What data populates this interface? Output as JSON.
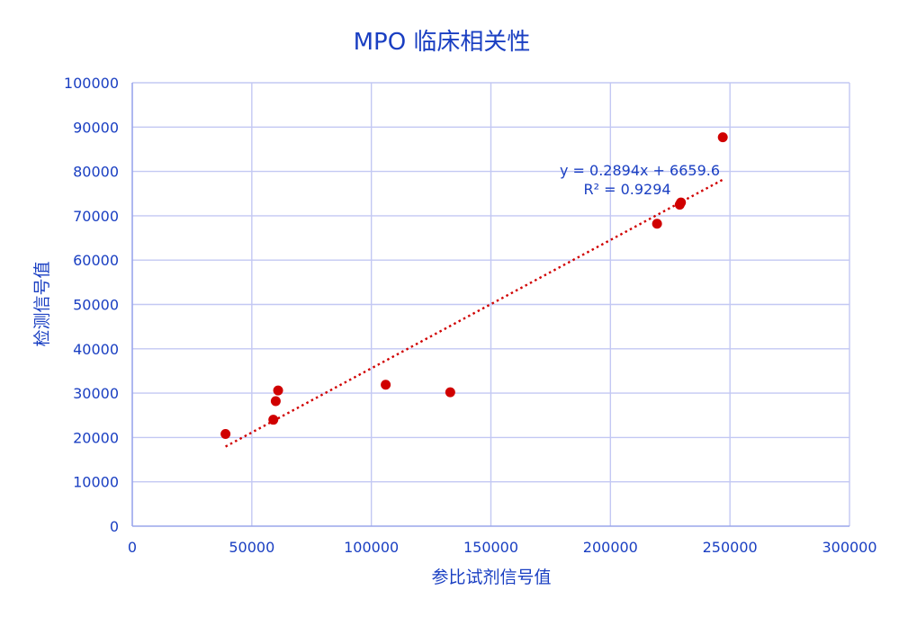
{
  "chart_data": {
    "type": "scatter",
    "title": "MPO 临床相关性",
    "xlabel": "参比试剂信号值",
    "ylabel": "检测信号值",
    "xlim": [
      0,
      300000
    ],
    "ylim": [
      0,
      100000
    ],
    "x_ticks": [
      0,
      50000,
      100000,
      150000,
      200000,
      250000,
      300000
    ],
    "y_ticks": [
      0,
      10000,
      20000,
      30000,
      40000,
      50000,
      60000,
      70000,
      80000,
      90000,
      100000
    ],
    "x_tick_labels": [
      "0",
      "50000",
      "100000",
      "150000",
      "200000",
      "250000",
      "300000"
    ],
    "y_tick_labels": [
      "0",
      "10000",
      "20000",
      "30000",
      "40000",
      "50000",
      "60000",
      "70000",
      "80000",
      "90000",
      "100000"
    ],
    "grid": true,
    "legend": "none",
    "series": [
      {
        "points": [
          {
            "x": 39000,
            "y": 20800
          },
          {
            "x": 59000,
            "y": 24000
          },
          {
            "x": 60000,
            "y": 28200
          },
          {
            "x": 61000,
            "y": 30600
          },
          {
            "x": 106000,
            "y": 31900
          },
          {
            "x": 133000,
            "y": 30200
          },
          {
            "x": 219500,
            "y": 68200
          },
          {
            "x": 229000,
            "y": 72500
          },
          {
            "x": 229500,
            "y": 73000
          },
          {
            "x": 247000,
            "y": 87700
          }
        ],
        "color": "#d00000"
      }
    ],
    "trendline": {
      "type": "linear",
      "slope": 0.2894,
      "intercept": 6659.6,
      "x_range": [
        39000,
        247000
      ],
      "equation": "y = 0.2894x + 6659.6",
      "r_squared": "R² = 0.9294",
      "color": "#d00000",
      "style": "dotted"
    },
    "colors": {
      "text": "#1a3fc2",
      "grid": "#c3c8f3",
      "axis": "#9aa6ec",
      "points": "#d00000"
    }
  }
}
